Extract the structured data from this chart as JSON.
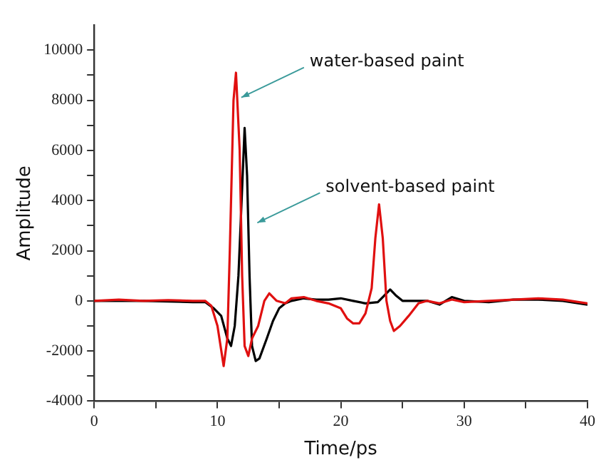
{
  "chart_data": {
    "type": "line",
    "xlabel": "Time/ps",
    "ylabel": "Amplitude",
    "xlim": [
      0,
      40
    ],
    "ylim": [
      -4000,
      11000
    ],
    "xticks": [
      0,
      {
        "value": 5,
        "label": null
      },
      10,
      {
        "value": 15,
        "label": null
      },
      20,
      {
        "value": 25,
        "label": null
      },
      30,
      {
        "value": 35,
        "label": null
      },
      40
    ],
    "yticks": [
      -4000,
      {
        "value": -3000,
        "label": null
      },
      -2000,
      {
        "value": -1000,
        "label": null
      },
      0,
      {
        "value": 1000,
        "label": null
      },
      2000,
      {
        "value": 3000,
        "label": null
      },
      4000,
      {
        "value": 5000,
        "label": null
      },
      6000,
      {
        "value": 7000,
        "label": null
      },
      8000,
      {
        "value": 9000,
        "label": null
      },
      10000
    ],
    "legend": false,
    "marker": "none",
    "line_style": "solid",
    "series": [
      {
        "color": "#e01010",
        "x": [
          0,
          2,
          4,
          6,
          8,
          9,
          9.5,
          10,
          10.5,
          10.8,
          11,
          11.3,
          11.5,
          11.8,
          12,
          12.2,
          12.5,
          12.8,
          13.3,
          13.8,
          14.2,
          14.8,
          15.5,
          16,
          17,
          18,
          19,
          20,
          20.5,
          21,
          21.5,
          22,
          22.5,
          22.8,
          23.1,
          23.4,
          23.7,
          24,
          24.3,
          24.8,
          25.5,
          26.3,
          27,
          28,
          29,
          30,
          32,
          34,
          36,
          38,
          40
        ],
        "values": [
          0,
          50,
          0,
          30,
          0,
          0,
          -200,
          -1000,
          -2600,
          -1500,
          2000,
          8000,
          9100,
          6000,
          1000,
          -1800,
          -2200,
          -1500,
          -1000,
          0,
          300,
          0,
          -100,
          100,
          150,
          0,
          -100,
          -300,
          -700,
          -900,
          -900,
          -500,
          500,
          2500,
          3850,
          2500,
          0,
          -800,
          -1200,
          -1000,
          -600,
          -100,
          0,
          -100,
          50,
          -50,
          0,
          50,
          100,
          50,
          -100
        ]
      },
      {
        "color": "#000000",
        "x": [
          0,
          4,
          8,
          9,
          9.7,
          10.3,
          10.8,
          11.1,
          11.4,
          11.7,
          12,
          12.2,
          12.4,
          12.6,
          12.8,
          13.1,
          13.4,
          14,
          14.5,
          15,
          15.5,
          16,
          17,
          18,
          19,
          20,
          21,
          22,
          23,
          23.5,
          24,
          24.5,
          25,
          27,
          28,
          29,
          30,
          32,
          34,
          36,
          38,
          40
        ],
        "values": [
          0,
          0,
          -50,
          -50,
          -300,
          -600,
          -1500,
          -1800,
          -1000,
          1000,
          4500,
          6900,
          5000,
          1000,
          -1800,
          -2400,
          -2300,
          -1500,
          -800,
          -300,
          -100,
          0,
          100,
          50,
          50,
          100,
          0,
          -100,
          -50,
          200,
          450,
          200,
          0,
          0,
          -150,
          150,
          0,
          -50,
          50,
          50,
          0,
          -150
        ]
      }
    ],
    "annotations": [
      {
        "text": "water-based paint",
        "x": 11.7,
        "y": 8000
      },
      {
        "text": "solvent-based paint",
        "x": 13,
        "y": 3000
      }
    ]
  }
}
